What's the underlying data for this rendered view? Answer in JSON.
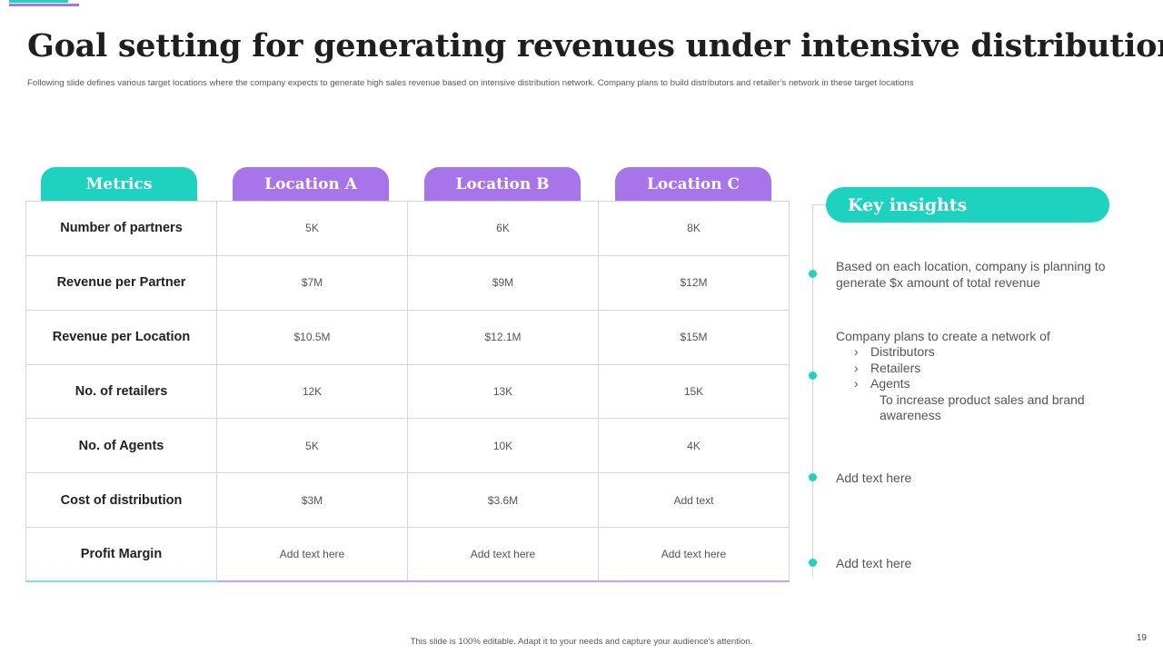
{
  "colors": {
    "teal": "#1dd3c0",
    "purple": "#a874ea"
  },
  "header": {
    "title": "Goal setting for generating revenues under intensive distribution",
    "subtitle": "Following slide defines various target locations where the company expects to generate high  sales revenue based on intensive distribution network. Company plans to build  distributors and retailer’s network in these target locations"
  },
  "table": {
    "headers": [
      "Metrics",
      "Location A",
      "Location B",
      "Location C"
    ],
    "rows": [
      {
        "metric": "Number of partners",
        "values": [
          "5K",
          "6K",
          "8K"
        ]
      },
      {
        "metric": "Revenue per Partner",
        "values": [
          "$7M",
          "$9M",
          "$12M"
        ]
      },
      {
        "metric": "Revenue per Location",
        "values": [
          "$10.5M",
          "$12.1M",
          "$15M"
        ]
      },
      {
        "metric": "No. of retailers",
        "values": [
          "12K",
          "13K",
          "15K"
        ]
      },
      {
        "metric": "No. of Agents",
        "values": [
          "5K",
          "10K",
          "4K"
        ]
      },
      {
        "metric": "Cost of distribution",
        "values": [
          "$3M",
          "$3.6M",
          "Add text"
        ]
      },
      {
        "metric": "Profit Margin",
        "values": [
          "Add text here",
          "Add text here",
          "Add text here"
        ]
      }
    ]
  },
  "insights": {
    "title": "Key insights",
    "item1": "Based on each location, company is planning to generate $x amount of total revenue",
    "item2": {
      "text": "Company plans to create a network of",
      "bullets": [
        "Distributors",
        "Retailers",
        "Agents"
      ],
      "note": "To increase product sales and brand awareness"
    },
    "item3": "Add text here",
    "item4": "Add text here"
  },
  "footer": {
    "note": "This slide is 100% editable.  Adapt it to your needs and capture your audience's attention.",
    "page_number": "19"
  }
}
